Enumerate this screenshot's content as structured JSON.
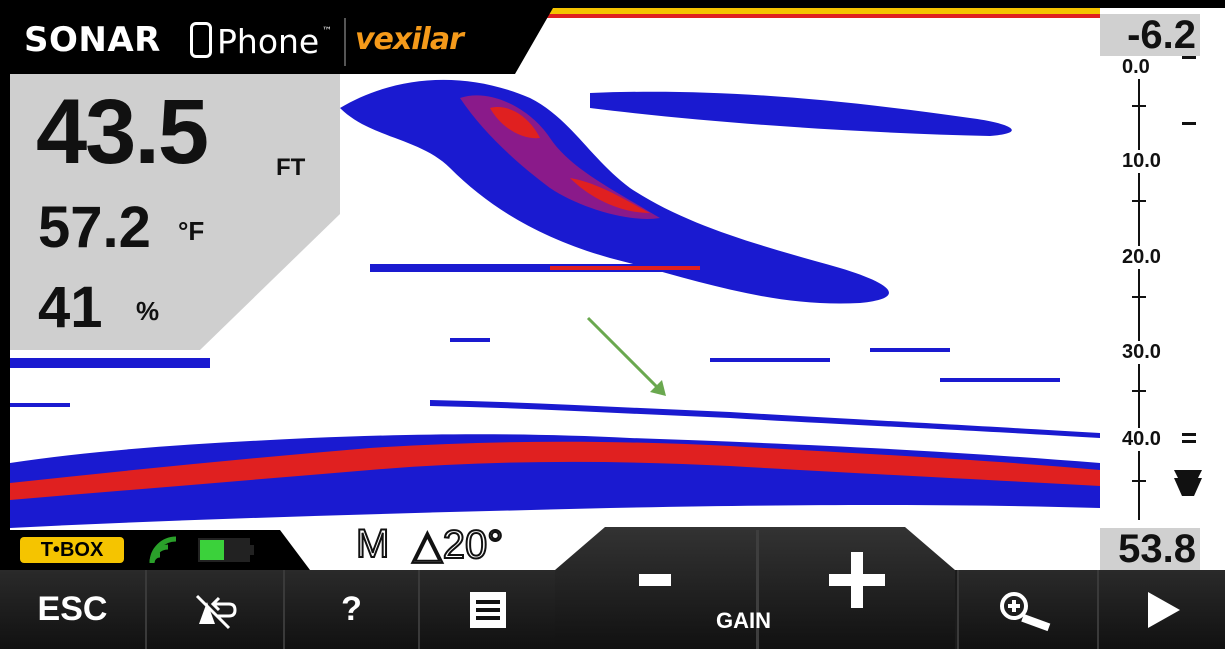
{
  "brand": {
    "name_bold": "SONAR",
    "name_light": "Phone",
    "trademark": "™",
    "partner": "vexilar"
  },
  "readouts": {
    "depth_value": "43.5",
    "depth_unit": "FT",
    "temperature_value": "57.2",
    "temperature_unit": "°F",
    "battery_value": "41",
    "battery_unit": "%"
  },
  "scale": {
    "top_offset": "-6.2",
    "bottom_depth": "53.8",
    "labels": [
      "0.0",
      "10.0",
      "20.0",
      "30.0",
      "40.0"
    ]
  },
  "status": {
    "device": "T•BOX",
    "mode": "M",
    "cone_angle": "△20°"
  },
  "toolbar": {
    "esc_label": "ESC",
    "help_label": "?",
    "gain_minus": "-",
    "gain_plus": "+",
    "gain_label": "GAIN"
  },
  "colors": {
    "accent_orange": "#f59a1a",
    "tbox_yellow": "#f5c400",
    "sonar_blue": "#1a1ad0",
    "sonar_red": "#e02020",
    "arrow_green": "#6aa84f"
  }
}
